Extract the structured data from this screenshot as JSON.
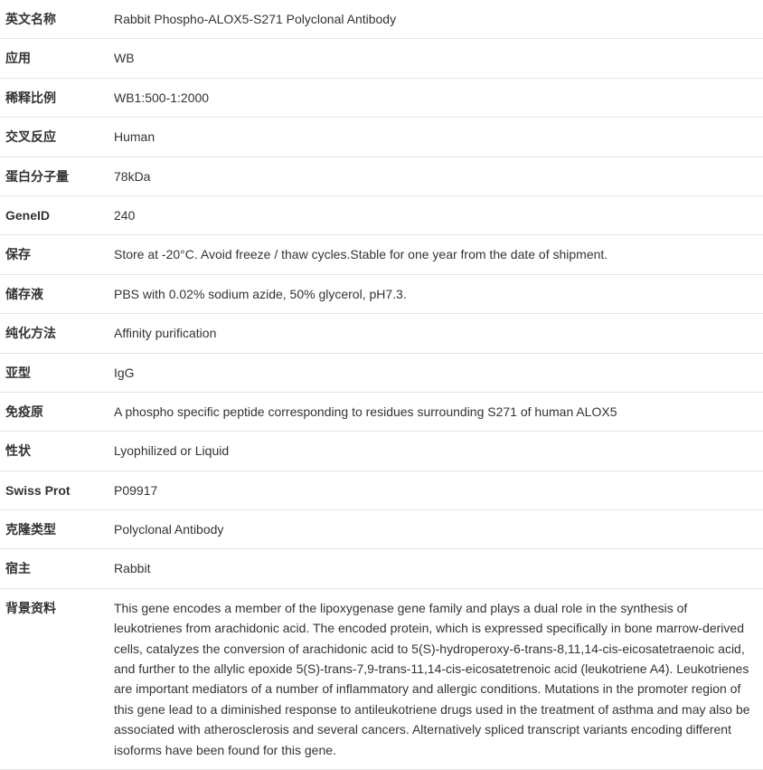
{
  "rows": [
    {
      "label": "英文名称",
      "value": "Rabbit Phospho-ALOX5-S271 Polyclonal Antibody"
    },
    {
      "label": "应用",
      "value": "WB"
    },
    {
      "label": "稀释比例",
      "value": "WB1:500-1:2000"
    },
    {
      "label": "交叉反应",
      "value": "Human"
    },
    {
      "label": "蛋白分子量",
      "value": "78kDa"
    },
    {
      "label": "GeneID",
      "value": "240"
    },
    {
      "label": "保存",
      "value": "Store at -20°C. Avoid freeze / thaw cycles.Stable for one year from the date of shipment."
    },
    {
      "label": "储存液",
      "value": "PBS with 0.02% sodium azide, 50% glycerol, pH7.3."
    },
    {
      "label": "纯化方法",
      "value": "Affinity purification"
    },
    {
      "label": "亚型",
      "value": "IgG"
    },
    {
      "label": "免疫原",
      "value": "A phospho specific peptide corresponding to residues surrounding S271 of human ALOX5"
    },
    {
      "label": "性状",
      "value": "Lyophilized or Liquid"
    },
    {
      "label": "Swiss Prot",
      "value": "P09917"
    },
    {
      "label": "克隆类型",
      "value": "Polyclonal Antibody"
    },
    {
      "label": "宿主",
      "value": "Rabbit"
    },
    {
      "label": "背景资料",
      "value": "This gene encodes a member of the lipoxygenase gene family and plays a dual role in the synthesis of leukotrienes from arachidonic acid. The encoded protein, which is expressed specifically in bone marrow-derived cells, catalyzes the conversion of arachidonic acid to 5(S)-hydroperoxy-6-trans-8,11,14-cis-eicosatetraenoic acid, and further to the allylic epoxide 5(S)-trans-7,9-trans-11,14-cis-eicosatetrenoic acid (leukotriene A4). Leukotrienes are important mediators of a number of inflammatory and allergic conditions. Mutations in the promoter region of this gene lead to a diminished response to antileukotriene drugs used in the treatment of asthma and may also be associated with atherosclerosis and several cancers. Alternatively spliced transcript variants encoding different isoforms have been found for this gene."
    }
  ]
}
